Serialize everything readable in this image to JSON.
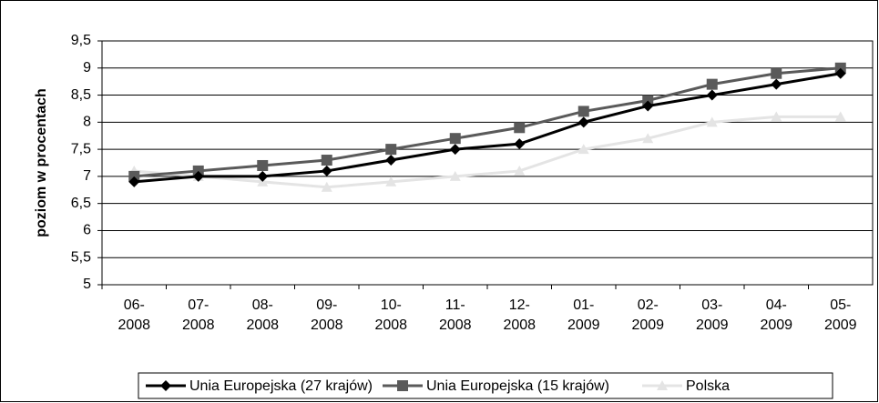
{
  "chart_data": {
    "type": "line",
    "y_label": "poziom w procentach",
    "categories": [
      "06-2008",
      "07-2008",
      "08-2008",
      "09-2008",
      "10-2008",
      "11-2008",
      "12-2008",
      "01-2009",
      "02-2009",
      "03-2009",
      "04-2009",
      "05-2009"
    ],
    "series": [
      {
        "name": "Unia Europejska (27 krajów)",
        "color": "#000000",
        "marker": "diamond",
        "values": [
          6.9,
          7.0,
          7.0,
          7.1,
          7.3,
          7.5,
          7.6,
          8.0,
          8.3,
          8.5,
          8.7,
          8.9
        ]
      },
      {
        "name": "Unia Europejska (15 krajów)",
        "color": "#5a5a5a",
        "marker": "square",
        "values": [
          7.0,
          7.1,
          7.2,
          7.3,
          7.5,
          7.7,
          7.9,
          8.2,
          8.4,
          8.7,
          8.9,
          9.0
        ]
      },
      {
        "name": "Polska",
        "color": "#e4e4e4",
        "marker": "triangle",
        "values": [
          7.1,
          7.0,
          6.9,
          6.8,
          6.9,
          7.0,
          7.1,
          7.5,
          7.7,
          8.0,
          8.1,
          8.1
        ]
      }
    ],
    "ylim": [
      5,
      9.5
    ],
    "yticks": [
      5,
      {
        "value": 5.5,
        "label": "5,5"
      },
      6,
      {
        "value": 6.5,
        "label": "6,5"
      },
      7,
      {
        "value": 7.5,
        "label": "7,5"
      },
      8,
      {
        "value": 8.5,
        "label": "8,5"
      },
      9,
      {
        "value": 9.5,
        "label": "9,5"
      }
    ],
    "grid": true,
    "legend": "bottom"
  }
}
